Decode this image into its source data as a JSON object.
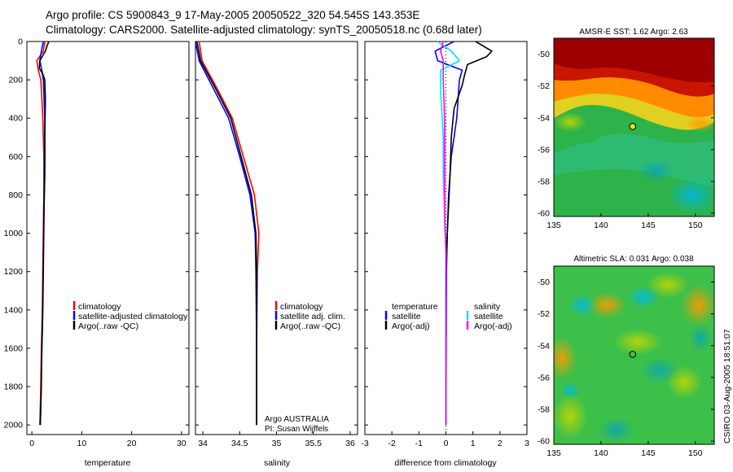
{
  "header": {
    "title_line1": "Argo profile: CS 5900843_9 17-May-2005 20050522_320 54.545S 143.353E",
    "title_line2": "Climatology: CARS2000. Satellite-adjusted climatology: synTS_20050518.nc (0.68d later)"
  },
  "side_stamp": "CSIRO 03-Aug-2005 18:51:07",
  "colors": {
    "red": "#ff0000",
    "blue": "#0000ff",
    "black": "#000000",
    "cyan": "#00e5ee",
    "magenta": "#ff00ff"
  },
  "chart_data": [
    {
      "type": "line",
      "id": "temperature-panel",
      "xlabel": "temperature",
      "ylabel": "",
      "xlim": [
        -1,
        31.5
      ],
      "ylim": [
        2050,
        0
      ],
      "xticks": [
        0,
        10,
        20,
        30
      ],
      "xtick_labels": [
        "0",
        "10",
        "20",
        "30"
      ],
      "yticks": [
        0,
        200,
        400,
        600,
        800,
        1000,
        1200,
        1400,
        1600,
        1800,
        2000
      ],
      "ytick_labels": [
        "0",
        "200",
        "400",
        "600",
        "800",
        "1000",
        "1200",
        "1400",
        "1600",
        "1800",
        "2000"
      ],
      "legend": {
        "position": "right-middle",
        "entries": [
          "climatology",
          "satellite-adjusted climatology",
          "Argo(..raw -QC)"
        ]
      },
      "series": [
        {
          "name": "climatology",
          "color": "#ff0000",
          "points": [
            [
              2.6,
              0
            ],
            [
              2.3,
              50
            ],
            [
              1.0,
              100
            ],
            [
              1.3,
              150
            ],
            [
              1.8,
              200
            ],
            [
              2.2,
              400
            ],
            [
              2.4,
              600
            ],
            [
              2.4,
              800
            ],
            [
              2.3,
              1000
            ],
            [
              2.2,
              1200
            ],
            [
              2.1,
              1400
            ],
            [
              1.9,
              1600
            ],
            [
              1.8,
              1800
            ],
            [
              1.6,
              2000
            ]
          ]
        },
        {
          "name": "satellite-adjusted climatology",
          "color": "#0000ff",
          "points": [
            [
              2.3,
              0
            ],
            [
              1.9,
              50
            ],
            [
              1.6,
              100
            ],
            [
              2.0,
              150
            ],
            [
              2.3,
              200
            ],
            [
              2.6,
              400
            ],
            [
              2.6,
              600
            ],
            [
              2.5,
              800
            ],
            [
              2.4,
              1000
            ],
            [
              2.3,
              1200
            ],
            [
              2.2,
              1400
            ],
            [
              2.0,
              1600
            ],
            [
              1.9,
              1800
            ],
            [
              1.7,
              2000
            ]
          ]
        },
        {
          "name": "Argo(..raw -QC)",
          "color": "#000000",
          "points": [
            [
              3.4,
              0
            ],
            [
              3.1,
              20
            ],
            [
              2.7,
              50
            ],
            [
              1.6,
              100
            ],
            [
              1.5,
              140
            ],
            [
              2.2,
              170
            ],
            [
              2.6,
              200
            ],
            [
              2.7,
              300
            ],
            [
              2.6,
              500
            ],
            [
              2.6,
              700
            ],
            [
              2.4,
              900
            ],
            [
              2.3,
              1100
            ],
            [
              2.2,
              1300
            ],
            [
              2.1,
              1500
            ],
            [
              1.9,
              1700
            ],
            [
              1.8,
              1900
            ],
            [
              1.7,
              2000
            ]
          ]
        }
      ]
    },
    {
      "type": "line",
      "id": "salinity-panel",
      "xlabel": "salinity",
      "ylabel": "",
      "xlim": [
        33.9,
        36.1
      ],
      "ylim": [
        2050,
        0
      ],
      "xticks": [
        34,
        34.5,
        35,
        35.5,
        36
      ],
      "xtick_labels": [
        "34",
        "34.5",
        "35",
        "35.5",
        "36"
      ],
      "yticks": [
        0,
        200,
        400,
        600,
        800,
        1000,
        1200,
        1400,
        1600,
        1800,
        2000
      ],
      "legend": {
        "position": "right-middle",
        "entries": [
          "climatology",
          "satellite adj. clim.",
          "Argo(..raw -QC)"
        ]
      },
      "annotation": [
        "Argo AUSTRALIA",
        "PI: Susan Wijffels"
      ],
      "series": [
        {
          "name": "climatology",
          "color": "#ff0000",
          "points": [
            [
              33.95,
              0
            ],
            [
              33.99,
              100
            ],
            [
              34.2,
              250
            ],
            [
              34.4,
              400
            ],
            [
              34.55,
              600
            ],
            [
              34.7,
              800
            ],
            [
              34.76,
              1000
            ],
            [
              34.74,
              1200
            ],
            [
              34.73,
              1600
            ],
            [
              34.73,
              2000
            ]
          ]
        },
        {
          "name": "satellite adj. clim.",
          "color": "#0000ff",
          "points": [
            [
              33.9,
              0
            ],
            [
              33.95,
              100
            ],
            [
              34.15,
              250
            ],
            [
              34.35,
              400
            ],
            [
              34.5,
              600
            ],
            [
              34.64,
              800
            ],
            [
              34.71,
              1000
            ],
            [
              34.72,
              1200
            ],
            [
              34.73,
              1600
            ],
            [
              34.73,
              2000
            ]
          ]
        },
        {
          "name": "Argo(..raw -QC)",
          "color": "#000000",
          "points": [
            [
              33.92,
              0
            ],
            [
              33.97,
              100
            ],
            [
              34.18,
              250
            ],
            [
              34.38,
              400
            ],
            [
              34.52,
              600
            ],
            [
              34.66,
              800
            ],
            [
              34.72,
              1000
            ],
            [
              34.73,
              1200
            ],
            [
              34.73,
              1600
            ],
            [
              34.73,
              2000
            ]
          ]
        }
      ]
    },
    {
      "type": "line",
      "id": "difference-panel",
      "xlabel": "difference from climatology",
      "ylabel": "",
      "xlim": [
        -3,
        3
      ],
      "ylim": [
        2050,
        0
      ],
      "xticks": [
        -3,
        -2,
        -1,
        0,
        1,
        2,
        3
      ],
      "xtick_labels": [
        "-3",
        "-2",
        "-1",
        "0",
        "1",
        "2",
        "3"
      ],
      "yticks": [
        0,
        200,
        400,
        600,
        800,
        1000,
        1200,
        1400,
        1600,
        1800,
        2000
      ],
      "legend": {
        "position": "right-middle",
        "left_title": "temperature",
        "right_title": "salinity",
        "entries": [
          "satellite",
          "Argo(-adj)",
          "satellite",
          "Argo(-adj)"
        ]
      },
      "series": [
        {
          "name": "temperature satellite",
          "color": "#0000ff",
          "points": [
            [
              0.3,
              0
            ],
            [
              -0.4,
              50
            ],
            [
              -0.3,
              100
            ],
            [
              0.6,
              150
            ],
            [
              0.5,
              200
            ],
            [
              0.4,
              400
            ],
            [
              0.2,
              600
            ],
            [
              0.1,
              800
            ],
            [
              0.05,
              1000
            ],
            [
              0.02,
              1200
            ],
            [
              0.0,
              2000
            ]
          ]
        },
        {
          "name": "temperature Argo(-adj)",
          "color": "#000000",
          "points": [
            [
              1.1,
              0
            ],
            [
              1.7,
              50
            ],
            [
              1.5,
              80
            ],
            [
              0.8,
              120
            ],
            [
              0.7,
              170
            ],
            [
              0.6,
              230
            ],
            [
              0.3,
              350
            ],
            [
              0.2,
              500
            ],
            [
              0.15,
              700
            ],
            [
              0.05,
              1000
            ],
            [
              0.0,
              1200
            ],
            [
              0.0,
              2000
            ]
          ]
        },
        {
          "name": "salinity satellite",
          "color": "#00e5ee",
          "points": [
            [
              -0.3,
              0
            ],
            [
              0.2,
              50
            ],
            [
              0.5,
              100
            ],
            [
              -0.2,
              150
            ],
            [
              -0.2,
              250
            ],
            [
              -0.1,
              500
            ],
            [
              -0.1,
              700
            ],
            [
              -0.05,
              900
            ],
            [
              0.0,
              1100
            ],
            [
              0.0,
              2000
            ]
          ]
        },
        {
          "name": "salinity Argo(-adj)",
          "color": "#ff00ff",
          "points": [
            [
              -0.1,
              0
            ],
            [
              -0.2,
              50
            ],
            [
              -0.1,
              100
            ],
            [
              -0.1,
              200
            ],
            [
              -0.05,
              400
            ],
            [
              -0.05,
              700
            ],
            [
              -0.05,
              900
            ],
            [
              0.0,
              1100
            ],
            [
              0.0,
              2000
            ]
          ]
        }
      ]
    },
    {
      "type": "heatmap",
      "id": "sst-map",
      "title": "AMSR-E SST: 1.62 Argo: 2.63",
      "xlim": [
        135,
        152
      ],
      "ylim": [
        -60.2,
        -49
      ],
      "xticks": [
        135,
        140,
        145,
        150
      ],
      "yticks": [
        -50,
        -52,
        -54,
        -56,
        -58,
        -60
      ],
      "xtick_labels": [
        "135",
        "140",
        "145",
        "150"
      ],
      "ytick_labels": [
        "-50",
        "-52",
        "-54",
        "-56",
        "-58",
        "-60"
      ],
      "marker": {
        "lon": 143.353,
        "lat": -54.545
      }
    },
    {
      "type": "heatmap",
      "id": "sla-map",
      "title": "Altimetric SLA: 0.031 Argo: 0.038",
      "xlim": [
        135,
        152
      ],
      "ylim": [
        -60.2,
        -49
      ],
      "xticks": [
        135,
        140,
        145,
        150
      ],
      "yticks": [
        -50,
        -52,
        -54,
        -56,
        -58,
        -60
      ],
      "xtick_labels": [
        "135",
        "140",
        "145",
        "150"
      ],
      "ytick_labels": [
        "-50",
        "-52",
        "-54",
        "-56",
        "-58",
        "-60"
      ],
      "marker": {
        "lon": 143.353,
        "lat": -54.545
      }
    }
  ]
}
